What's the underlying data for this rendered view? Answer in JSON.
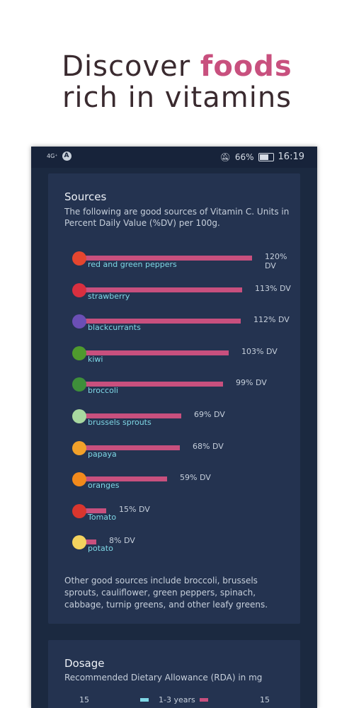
{
  "headline": {
    "line1_plain": "Discover ",
    "line1_accent": "foods",
    "line2": "rich in vitamins"
  },
  "status": {
    "signal": "4G⁺",
    "battery": "66%",
    "time": "16:19"
  },
  "sources": {
    "title": "Sources",
    "subtitle": "The following are good sources of Vitamin C. Units in Percent Daily Value (%DV) per 100g.",
    "items": [
      {
        "label": "red and green peppers",
        "dv": 120,
        "dv_text": "120% DV",
        "icon": "pepper-icon",
        "color": "#e5462f"
      },
      {
        "label": "strawberry",
        "dv": 113,
        "dv_text": "113% DV",
        "icon": "strawberry-icon",
        "color": "#d92f3f"
      },
      {
        "label": "blackcurrants",
        "dv": 112,
        "dv_text": "112% DV",
        "icon": "blackcurrant-icon",
        "color": "#6b4fb5"
      },
      {
        "label": "kiwi",
        "dv": 103,
        "dv_text": "103% DV",
        "icon": "kiwi-icon",
        "color": "#4f9a2e"
      },
      {
        "label": "broccoli",
        "dv": 99,
        "dv_text": "99% DV",
        "icon": "broccoli-icon",
        "color": "#3e8f3a"
      },
      {
        "label": "brussels sprouts",
        "dv": 69,
        "dv_text": "69% DV",
        "icon": "brussels-sprouts-icon",
        "color": "#a8d8a0"
      },
      {
        "label": "papaya",
        "dv": 68,
        "dv_text": "68% DV",
        "icon": "papaya-icon",
        "color": "#f2a12a"
      },
      {
        "label": "oranges",
        "dv": 59,
        "dv_text": "59% DV",
        "icon": "orange-icon",
        "color": "#f28a1c"
      },
      {
        "label": "Tomato",
        "dv": 15,
        "dv_text": "15% DV",
        "icon": "tomato-icon",
        "color": "#d9362e"
      },
      {
        "label": "potato",
        "dv": 8,
        "dv_text": "8% DV",
        "icon": "potato-icon",
        "color": "#f4d35e"
      }
    ],
    "note": "Other good sources include broccoli, brussels sprouts, cauliflower, green peppers, spinach, cabbage, turnip greens, and other leafy greens."
  },
  "dosage": {
    "title": "Dosage",
    "subtitle": "Recommended Dietary Allowance (RDA) in mg",
    "row": {
      "left_value": "15",
      "label": "1-3 years",
      "right_value": "15"
    },
    "colors": {
      "series1": "#7fd8e6",
      "series2": "#c8507e"
    }
  }
}
